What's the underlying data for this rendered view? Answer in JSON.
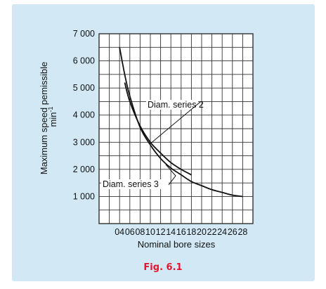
{
  "chart_data": {
    "type": "line",
    "title": "",
    "xlabel": "Nominal bore sizes",
    "ylabel": "Maximum speed pemissible",
    "ylabel_unit_base": "min",
    "ylabel_unit_exp": "-1",
    "x_ticks": [
      "04",
      "06",
      "08",
      "10",
      "12",
      "14",
      "16",
      "18",
      "20",
      "22",
      "24",
      "26",
      "28"
    ],
    "y_ticks": [
      {
        "value": 1000,
        "label": "1 000"
      },
      {
        "value": 2000,
        "label": "2 000"
      },
      {
        "value": 3000,
        "label": "3 000"
      },
      {
        "value": 4000,
        "label": "4 000"
      },
      {
        "value": 5000,
        "label": "5 000"
      },
      {
        "value": 6000,
        "label": "6 000"
      },
      {
        "value": 7000,
        "label": "7 000"
      }
    ],
    "ylim": [
      0,
      7000
    ],
    "grid": true,
    "series": [
      {
        "name": "Diam. series 2",
        "x": [
          5,
          6,
          8,
          10,
          12,
          14,
          16,
          18
        ],
        "y": [
          5200,
          4500,
          3600,
          3000,
          2600,
          2250,
          2000,
          1800
        ]
      },
      {
        "name": "Diam. series 3",
        "x": [
          4,
          5,
          6,
          8,
          10,
          12,
          14,
          16,
          18,
          20,
          22,
          24,
          26,
          28
        ],
        "y": [
          6500,
          5500,
          4700,
          3550,
          2900,
          2400,
          2050,
          1800,
          1550,
          1400,
          1250,
          1150,
          1050,
          1000
        ]
      }
    ],
    "annotations": [
      {
        "text": "Diam. series 2",
        "series": 0
      },
      {
        "text": "Diam. series 3",
        "series": 1
      }
    ]
  },
  "caption": "Fig. 6.1"
}
